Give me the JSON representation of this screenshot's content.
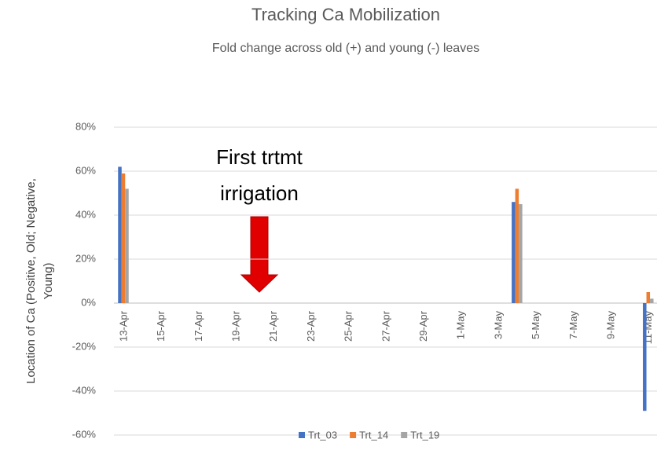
{
  "chart_data": {
    "type": "bar",
    "title": "Tracking Ca Mobilization",
    "subtitle": "Fold change across old (+) and young (-) leaves",
    "y_label": "Location of Ca (Positive, Old; Negative, Young)",
    "annotation": "First trtmt irrigation",
    "categories": [
      "13-Apr",
      null,
      "15-Apr",
      null,
      "17-Apr",
      null,
      "19-Apr",
      null,
      "21-Apr",
      null,
      "23-Apr",
      null,
      "25-Apr",
      null,
      "27-Apr",
      null,
      "29-Apr",
      null,
      "1-May",
      null,
      "3-May",
      null,
      "5-May",
      null,
      "7-May",
      null,
      "9-May",
      null,
      "11-May"
    ],
    "series": [
      {
        "name": "Trt_03",
        "color": "#4472c4",
        "values": [
          62,
          null,
          null,
          null,
          null,
          null,
          null,
          null,
          null,
          null,
          null,
          null,
          null,
          null,
          null,
          null,
          null,
          null,
          null,
          null,
          null,
          46,
          null,
          null,
          null,
          null,
          null,
          null,
          -49
        ]
      },
      {
        "name": "Trt_14",
        "color": "#ed7d31",
        "values": [
          59,
          null,
          null,
          null,
          null,
          null,
          null,
          null,
          null,
          null,
          null,
          null,
          null,
          null,
          null,
          null,
          null,
          null,
          null,
          null,
          null,
          52,
          null,
          null,
          null,
          null,
          null,
          null,
          5
        ]
      },
      {
        "name": "Trt_19",
        "color": "#a5a5a5",
        "values": [
          52,
          null,
          null,
          null,
          null,
          null,
          null,
          null,
          null,
          null,
          null,
          null,
          null,
          null,
          null,
          null,
          null,
          null,
          null,
          null,
          null,
          45,
          null,
          null,
          null,
          null,
          null,
          null,
          2
        ]
      }
    ],
    "ylim": [
      -60,
      80
    ],
    "yticks": [
      {
        "value": -60,
        "label": "-60%"
      },
      {
        "value": -40,
        "label": "-40%"
      },
      {
        "value": -20,
        "label": "-20%"
      },
      {
        "value": 0,
        "label": "0%"
      },
      {
        "value": 20,
        "label": "20%"
      },
      {
        "value": 40,
        "label": "40%"
      },
      {
        "value": 60,
        "label": "60%"
      },
      {
        "value": 80,
        "label": "80%"
      }
    ],
    "grid": true,
    "legend": "bottom"
  }
}
